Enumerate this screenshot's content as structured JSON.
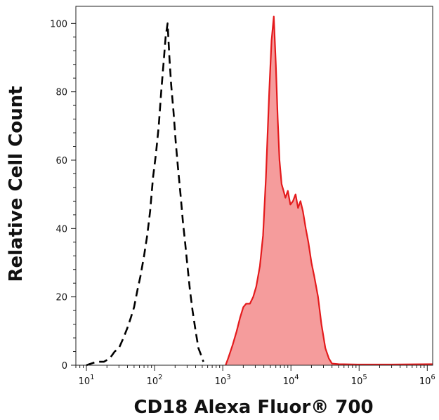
{
  "chart_data": {
    "type": "area",
    "xlabel": "CD18 Alexa Fluor® 700",
    "ylabel": "Relative Cell Count",
    "x_scale": "log",
    "xlim": [
      7,
      1200000
    ],
    "ylim": [
      0,
      105
    ],
    "x_ticks": [
      {
        "value": 10,
        "base": "10",
        "exp": "1"
      },
      {
        "value": 100,
        "base": "10",
        "exp": "2"
      },
      {
        "value": 1000,
        "base": "10",
        "exp": "3"
      },
      {
        "value": 10000,
        "base": "10",
        "exp": "4"
      },
      {
        "value": 100000,
        "base": "10",
        "exp": "5"
      },
      {
        "value": 1000000,
        "base": "10",
        "exp": "6"
      }
    ],
    "y_ticks": [
      0,
      20,
      40,
      60,
      80,
      100
    ],
    "grid": false,
    "series": [
      {
        "style": "dashed-line",
        "color": "#000000",
        "x": [
          10,
          14,
          18,
          22,
          26,
          30,
          35,
          40,
          45,
          50,
          56,
          62,
          70,
          78,
          86,
          95,
          105,
          115,
          125,
          135,
          145,
          155,
          165,
          175,
          190,
          205,
          220,
          240,
          260,
          280,
          300,
          330,
          360,
          400,
          440,
          480,
          520
        ],
        "y": [
          0,
          1,
          1,
          2,
          4,
          5,
          8,
          11,
          14,
          17,
          22,
          26,
          32,
          38,
          45,
          55,
          62,
          70,
          80,
          88,
          96,
          100,
          90,
          82,
          74,
          65,
          58,
          50,
          42,
          36,
          30,
          22,
          16,
          10,
          5,
          3,
          1
        ]
      },
      {
        "style": "filled-area",
        "color": "#e41a1c",
        "fill": "#f59c9c",
        "x": [
          1100,
          1200,
          1400,
          1600,
          1800,
          2000,
          2200,
          2500,
          2800,
          3100,
          3500,
          3900,
          4300,
          4800,
          5200,
          5600,
          6000,
          6400,
          6800,
          7300,
          7800,
          8300,
          9000,
          9800,
          10700,
          11700,
          12700,
          13800,
          15000,
          16500,
          18000,
          20000,
          22000,
          25000,
          28000,
          32000,
          36000,
          40000,
          50000,
          100000,
          300000,
          1200000
        ],
        "y": [
          0,
          2,
          6,
          10,
          14,
          17,
          18,
          18,
          20,
          23,
          29,
          38,
          55,
          80,
          95,
          102,
          88,
          72,
          60,
          53,
          51,
          49,
          51,
          47,
          48,
          50,
          46,
          48,
          45,
          40,
          36,
          30,
          26,
          20,
          12,
          5,
          2,
          0.5,
          0.3,
          0.2,
          0.2,
          0.3
        ]
      }
    ]
  }
}
